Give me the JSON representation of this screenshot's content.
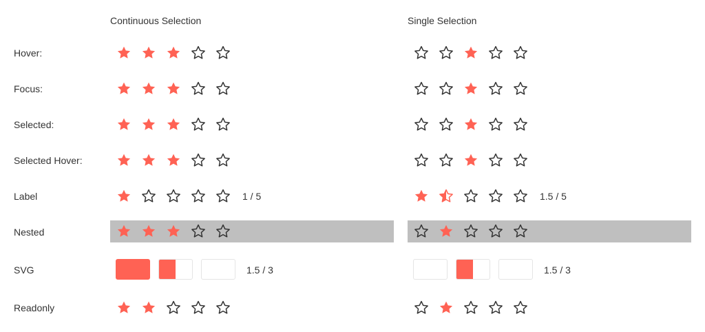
{
  "columns": {
    "continuous": {
      "title": "Continuous Selection"
    },
    "single": {
      "title": "Single Selection"
    }
  },
  "colors": {
    "accent": "#ff6254",
    "outline": "#333333",
    "nested_bg": "#bfbfbf",
    "svg_box_border": "#e4e4e4"
  },
  "rows": {
    "hover": {
      "label": "Hover:",
      "continuous": {
        "max": 5,
        "value": 3
      },
      "single": {
        "max": 5,
        "value": 3,
        "single_selected": 3
      }
    },
    "focus": {
      "label": "Focus:",
      "continuous": {
        "max": 5,
        "value": 3
      },
      "single": {
        "max": 5,
        "value": 3,
        "single_selected": 3
      }
    },
    "selected": {
      "label": "Selected:",
      "continuous": {
        "max": 5,
        "value": 3
      },
      "single": {
        "max": 5,
        "value": 3,
        "single_selected": 3
      }
    },
    "selected_hover": {
      "label": "Selected Hover:",
      "continuous": {
        "max": 5,
        "value": 3
      },
      "single": {
        "max": 5,
        "value": 3,
        "single_selected": 3
      }
    },
    "label": {
      "label": "Label",
      "continuous": {
        "max": 5,
        "value": 1,
        "value_text": "1 / 5"
      },
      "single": {
        "max": 5,
        "value": 1.5,
        "value_text": "1.5 / 5"
      }
    },
    "nested": {
      "label": "Nested",
      "continuous": {
        "max": 5,
        "value": 3
      },
      "single": {
        "max": 5,
        "value": 2,
        "single_selected": 2
      }
    },
    "svg": {
      "label": "SVG",
      "continuous": {
        "max": 3,
        "value": 1.5,
        "value_text": "1.5 / 3"
      },
      "single": {
        "max": 3,
        "value": 1.5,
        "single_selected": 2,
        "value_text": "1.5 / 3"
      }
    },
    "readonly": {
      "label": "Readonly",
      "continuous": {
        "max": 5,
        "value": 2
      },
      "single": {
        "max": 5,
        "value": 2,
        "single_selected": 2
      }
    }
  }
}
